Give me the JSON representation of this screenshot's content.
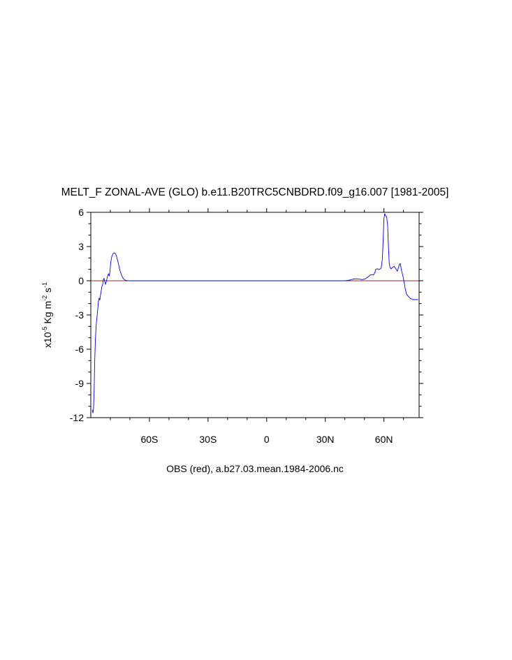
{
  "chart_data": {
    "type": "line",
    "title": "MELT_F ZONAL-AVE (GLO) b.e11.B20TRC5CNBDRD.f09_g16.007 [1981-2005]",
    "xlabel": "OBS (red), a.b27.03.mean.1984-2006.nc",
    "ylabel": {
      "prefix": "x10",
      "exp1": "-5",
      "unit1": " Kg m",
      "exp2": "-2",
      "unit2": " s",
      "exp3": "-1"
    },
    "xlim": [
      -90,
      78
    ],
    "ylim": [
      -12,
      6
    ],
    "xticks": [
      {
        "value": -60,
        "label": "60S"
      },
      {
        "value": -30,
        "label": "30S"
      },
      {
        "value": 0,
        "label": "0"
      },
      {
        "value": 30,
        "label": "30N"
      },
      {
        "value": 60,
        "label": "60N"
      }
    ],
    "yticks": [
      {
        "value": 6,
        "label": "6"
      },
      {
        "value": 3,
        "label": "3"
      },
      {
        "value": 0,
        "label": "0"
      },
      {
        "value": -3,
        "label": "-3"
      },
      {
        "value": -6,
        "label": "-6"
      },
      {
        "value": -9,
        "label": "-9"
      },
      {
        "value": -12,
        "label": "-12"
      }
    ],
    "series": [
      {
        "color": "#0000ff",
        "points": [
          [
            -89.3,
            -11.3
          ],
          [
            -88.9,
            -11.6
          ],
          [
            -88.6,
            -11.2
          ],
          [
            -88.3,
            -9.5
          ],
          [
            -88.0,
            -7.0
          ],
          [
            -87.6,
            -5.0
          ],
          [
            -87.2,
            -3.8
          ],
          [
            -86.8,
            -3.1
          ],
          [
            -86.4,
            -2.4
          ],
          [
            -86.1,
            -1.8
          ],
          [
            -85.7,
            -1.5
          ],
          [
            -85.4,
            -1.7
          ],
          [
            -85.0,
            -1.2
          ],
          [
            -84.6,
            -0.8
          ],
          [
            -84.3,
            -0.5
          ],
          [
            -83.9,
            -0.3
          ],
          [
            -83.6,
            0.1
          ],
          [
            -83.2,
            0.2
          ],
          [
            -82.8,
            -0.1
          ],
          [
            -82.5,
            -0.3
          ],
          [
            -82.1,
            -0.1
          ],
          [
            -81.7,
            0.2
          ],
          [
            -81.3,
            0.5
          ],
          [
            -80.9,
            0.6
          ],
          [
            -80.6,
            0.4
          ],
          [
            -80.2,
            0.8
          ],
          [
            -79.8,
            1.6
          ],
          [
            -79.3,
            2.1
          ],
          [
            -78.7,
            2.35
          ],
          [
            -78.1,
            2.45
          ],
          [
            -77.5,
            2.4
          ],
          [
            -76.9,
            2.2
          ],
          [
            -76.3,
            1.8
          ],
          [
            -75.6,
            1.3
          ],
          [
            -74.9,
            0.8
          ],
          [
            -74.2,
            0.45
          ],
          [
            -73.4,
            0.2
          ],
          [
            -72.6,
            0.07
          ],
          [
            -71.7,
            0.02
          ],
          [
            -70.5,
            0.0
          ],
          [
            40.0,
            0.0
          ],
          [
            41.5,
            0.03
          ],
          [
            43.0,
            0.08
          ],
          [
            44.5,
            0.15
          ],
          [
            46.0,
            0.17
          ],
          [
            47.5,
            0.14
          ],
          [
            49.0,
            0.1
          ],
          [
            50.5,
            0.18
          ],
          [
            52.0,
            0.35
          ],
          [
            53.0,
            0.5
          ],
          [
            54.0,
            0.55
          ],
          [
            54.7,
            0.5
          ],
          [
            55.3,
            0.7
          ],
          [
            55.8,
            1.0
          ],
          [
            56.6,
            1.05
          ],
          [
            57.6,
            1.0
          ],
          [
            58.6,
            1.1
          ],
          [
            59.2,
            1.9
          ],
          [
            59.6,
            3.5
          ],
          [
            60.0,
            5.4
          ],
          [
            60.4,
            5.9
          ],
          [
            60.8,
            5.7
          ],
          [
            61.4,
            5.6
          ],
          [
            61.9,
            4.8
          ],
          [
            62.3,
            3.0
          ],
          [
            62.7,
            1.6
          ],
          [
            63.1,
            1.15
          ],
          [
            63.7,
            1.05
          ],
          [
            64.5,
            1.2
          ],
          [
            65.3,
            1.25
          ],
          [
            66.1,
            1.05
          ],
          [
            66.8,
            0.85
          ],
          [
            67.4,
            1.1
          ],
          [
            67.9,
            1.45
          ],
          [
            68.4,
            1.5
          ],
          [
            68.9,
            1.0
          ],
          [
            69.6,
            0.5
          ],
          [
            70.3,
            -0.1
          ],
          [
            70.9,
            -0.7
          ],
          [
            71.6,
            -1.2
          ],
          [
            72.4,
            -1.35
          ],
          [
            73.5,
            -1.55
          ],
          [
            75.0,
            -1.65
          ],
          [
            76.5,
            -1.65
          ],
          [
            77.5,
            -1.65
          ]
        ]
      },
      {
        "color": "#a02020",
        "points": [
          [
            -90,
            0
          ],
          [
            78,
            0
          ]
        ]
      }
    ],
    "grid": false,
    "legend": "none"
  }
}
